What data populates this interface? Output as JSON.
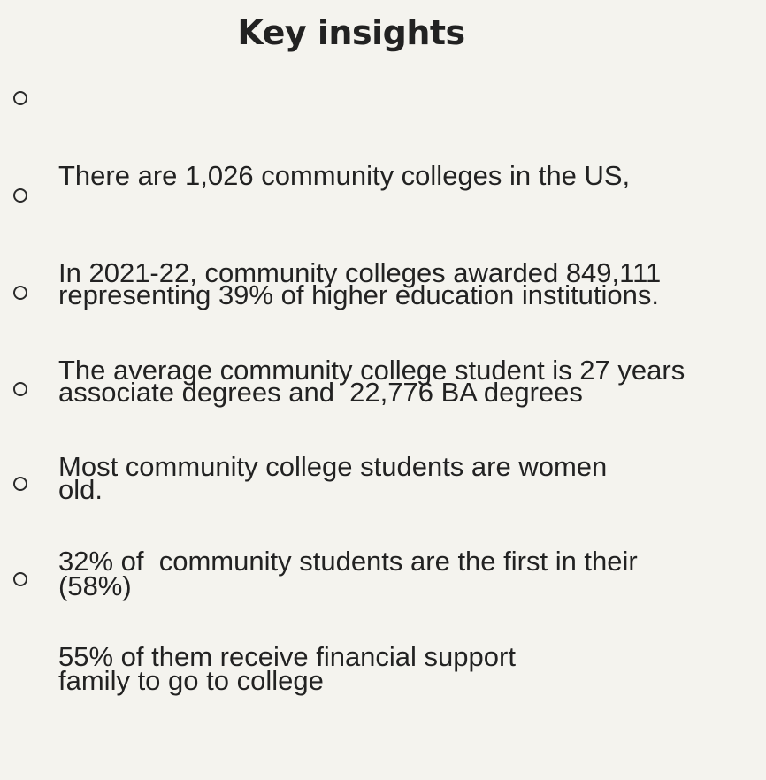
{
  "title": "Key insights",
  "insights": [
    {
      "lines": [
        "There are 1,026 community colleges in the US,",
        "representing 39% of higher education institutions."
      ]
    },
    {
      "lines": [
        "In 2021-22, community colleges awarded 849,111",
        "associate degrees and  22,776 BA degrees"
      ]
    },
    {
      "lines": [
        "The average community college student is 27 years",
        "old."
      ]
    },
    {
      "lines": [
        "Most community college students are women",
        "(58%)"
      ]
    },
    {
      "lines": [
        "32% of  community students are the first in their",
        "family to go to college"
      ]
    },
    {
      "lines": [
        "55% of them receive financial support"
      ]
    }
  ]
}
